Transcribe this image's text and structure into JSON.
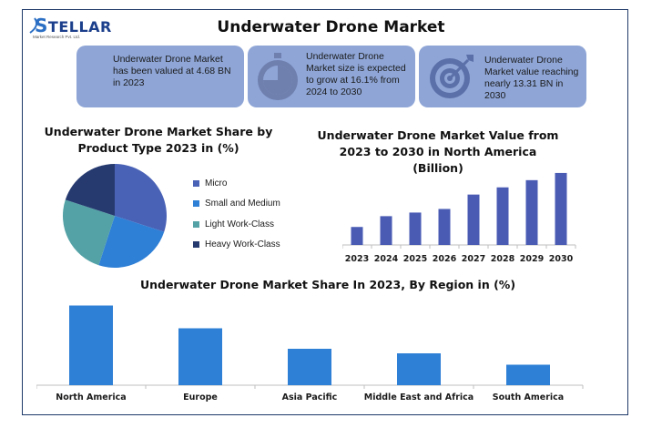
{
  "logo": {
    "word": "TELLAR",
    "initial": "S",
    "tagline": "Market Research Pvt. Ltd."
  },
  "title": "Underwater Drone Market",
  "cards": [
    {
      "text": "Underwater Drone Market has been valued at 4.68 BN in 2023",
      "icon": "piggy-bank-icon"
    },
    {
      "text": "Underwater Drone Market size is expected to grow at 16.1% from 2024 to 2030",
      "icon": "stopwatch-icon"
    },
    {
      "text": "Underwater Drone Market value reaching nearly 13.31 BN in 2030",
      "icon": "target-icon"
    }
  ],
  "colors": {
    "card": "#8ea5d6",
    "pie": [
      "#4a62b6",
      "#2e7fd6",
      "#54a2a6",
      "#263a70"
    ],
    "bar_na": "#4a5bb4",
    "bar_region": "#2e7fd6"
  },
  "chart_data": [
    {
      "type": "pie",
      "title": "Underwater Drone Market Share by Product Type 2023 in (%)",
      "labels": [
        "Micro",
        "Small and Medium",
        "Light Work-Class",
        "Heavy Work-Class"
      ],
      "values": [
        30,
        25,
        25,
        20
      ],
      "legend": "right"
    },
    {
      "type": "bar",
      "title": "Underwater Drone Market Value from 2023 to 2030 in North America (Billion)",
      "categories": [
        "2023",
        "2024",
        "2025",
        "2026",
        "2027",
        "2028",
        "2029",
        "2030"
      ],
      "values": [
        1.0,
        1.6,
        1.8,
        2.0,
        2.8,
        3.2,
        3.6,
        4.0
      ],
      "ylim": [
        0,
        4.3
      ],
      "grid": false
    },
    {
      "type": "bar",
      "title": "Underwater Drone Market Share In 2023, By Region in (%)",
      "categories": [
        "North America",
        "Europe",
        "Asia Pacific",
        "Middle East and Africa",
        "South America"
      ],
      "values": [
        35,
        25,
        16,
        14,
        9
      ],
      "ylim": [
        0,
        40
      ],
      "grid": false
    }
  ]
}
